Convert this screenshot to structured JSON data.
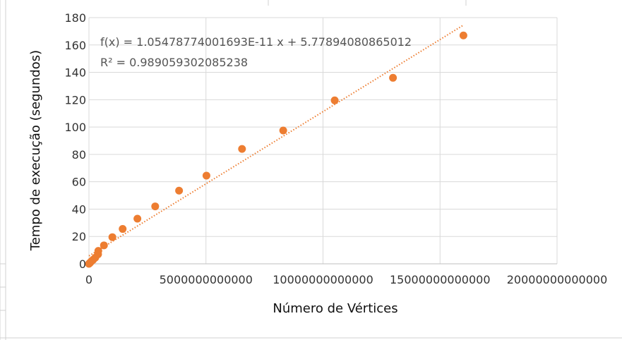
{
  "chart_data": {
    "type": "scatter",
    "title": "",
    "xlabel": "Número de Vértices",
    "ylabel": "Tempo de execução (segundos)",
    "xlim": [
      0,
      20000000000000
    ],
    "ylim": [
      0,
      180
    ],
    "x_ticks": [
      0,
      5000000000000,
      10000000000000,
      15000000000000,
      20000000000000
    ],
    "x_tick_labels": [
      "0",
      "5000000000000",
      "10000000000000",
      "15000000000000",
      "20000000000000"
    ],
    "y_ticks": [
      0,
      20,
      40,
      60,
      80,
      100,
      120,
      140,
      160,
      180
    ],
    "y_tick_labels": [
      "0",
      "20",
      "40",
      "60",
      "80",
      "100",
      "120",
      "140",
      "160",
      "180"
    ],
    "grid": true,
    "legend": "none",
    "marker_color": "#ED7D31",
    "trendline_color": "#ED7D31",
    "series": [
      {
        "points": [
          {
            "x": 0,
            "y": 0
          },
          {
            "x": 20000000000,
            "y": 0.3
          },
          {
            "x": 60000000000,
            "y": 1
          },
          {
            "x": 110000000000,
            "y": 2
          },
          {
            "x": 180000000000,
            "y": 3
          },
          {
            "x": 270000000000,
            "y": 4.5
          },
          {
            "x": 390000000000,
            "y": 7
          },
          {
            "x": 400000000000,
            "y": 9.5
          },
          {
            "x": 640000000000,
            "y": 13.5
          },
          {
            "x": 1000000000000,
            "y": 19.5
          },
          {
            "x": 1440000000000,
            "y": 25.5
          },
          {
            "x": 2070000000000,
            "y": 33
          },
          {
            "x": 2830000000000,
            "y": 42
          },
          {
            "x": 3850000000000,
            "y": 53.5
          },
          {
            "x": 5020000000000,
            "y": 64.5
          },
          {
            "x": 6540000000000,
            "y": 84
          },
          {
            "x": 8300000000000,
            "y": 97.5
          },
          {
            "x": 10500000000000,
            "y": 119.5
          },
          {
            "x": 12990000000000,
            "y": 136
          },
          {
            "x": 16000000000000,
            "y": 167
          }
        ]
      }
    ],
    "trendline": {
      "type": "linear",
      "slope": 1.05478774001693e-11,
      "intercept": 5.77894080865012,
      "x_range": [
        0,
        16000000000000
      ],
      "equation_label": "f(x) = 1.05478774001693E-11 x + 5.77894080865012",
      "r2_label": "R² = 0.989059302085238"
    }
  }
}
